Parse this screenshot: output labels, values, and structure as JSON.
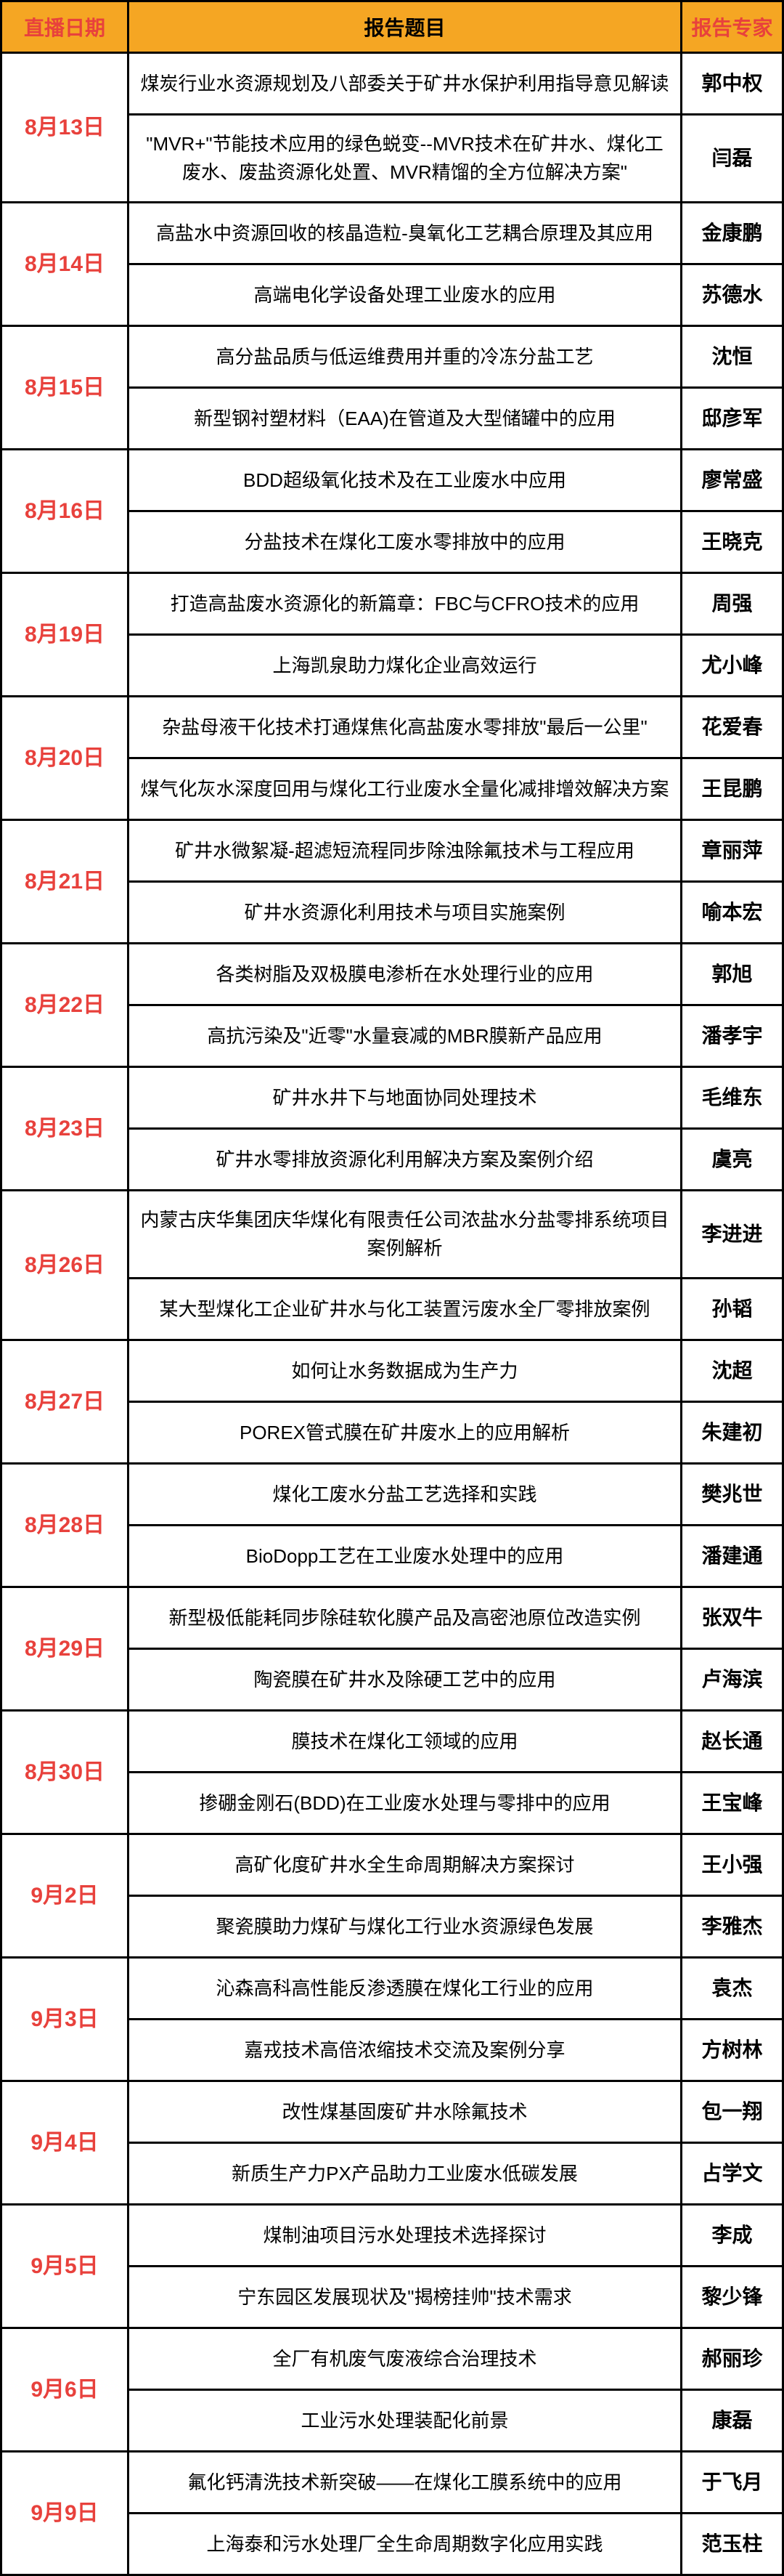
{
  "header": {
    "date_label": "直播日期",
    "title_label": "报告题目",
    "expert_label": "报告专家"
  },
  "colors": {
    "header_bg": "#f5a623",
    "date_text": "#e8413c",
    "border": "#000000"
  },
  "schedule": [
    {
      "date": "8月13日",
      "sessions": [
        {
          "title": "煤炭行业水资源规划及八部委关于矿井水保护利用指导意见解读",
          "expert": "郭中权"
        },
        {
          "title": "\"MVR+\"节能技术应用的绿色蜕变--MVR技术在矿井水、煤化工废水、废盐资源化处置、MVR精馏的全方位解决方案\"",
          "expert": "闫磊"
        }
      ]
    },
    {
      "date": "8月14日",
      "sessions": [
        {
          "title": "高盐水中资源回收的核晶造粒-臭氧化工艺耦合原理及其应用",
          "expert": "金康鹏"
        },
        {
          "title": "高端电化学设备处理工业废水的应用",
          "expert": "苏德水"
        }
      ]
    },
    {
      "date": "8月15日",
      "sessions": [
        {
          "title": "高分盐品质与低运维费用并重的冷冻分盐工艺",
          "expert": "沈恒"
        },
        {
          "title": "新型钢衬塑材料（EAA)在管道及大型储罐中的应用",
          "expert": "邸彦军"
        }
      ]
    },
    {
      "date": "8月16日",
      "sessions": [
        {
          "title": "BDD超级氧化技术及在工业废水中应用",
          "expert": "廖常盛"
        },
        {
          "title": "分盐技术在煤化工废水零排放中的应用",
          "expert": "王晓克"
        }
      ]
    },
    {
      "date": "8月19日",
      "sessions": [
        {
          "title": "打造高盐废水资源化的新篇章：FBC与CFRO技术的应用",
          "expert": "周强"
        },
        {
          "title": "上海凯泉助力煤化企业高效运行",
          "expert": "尤小峰"
        }
      ]
    },
    {
      "date": "8月20日",
      "sessions": [
        {
          "title": "杂盐母液干化技术打通煤焦化高盐废水零排放\"最后一公里\"",
          "expert": "花爱春"
        },
        {
          "title": "煤气化灰水深度回用与煤化工行业废水全量化减排增效解决方案",
          "expert": "王昆鹏"
        }
      ]
    },
    {
      "date": "8月21日",
      "sessions": [
        {
          "title": "矿井水微絮凝-超滤短流程同步除浊除氟技术与工程应用",
          "expert": "章丽萍"
        },
        {
          "title": "矿井水资源化利用技术与项目实施案例",
          "expert": "喻本宏"
        }
      ]
    },
    {
      "date": "8月22日",
      "sessions": [
        {
          "title": "各类树脂及双极膜电渗析在水处理行业的应用",
          "expert": "郭旭"
        },
        {
          "title": "高抗污染及\"近零\"水量衰减的MBR膜新产品应用",
          "expert": "潘孝宇"
        }
      ]
    },
    {
      "date": "8月23日",
      "sessions": [
        {
          "title": "矿井水井下与地面协同处理技术",
          "expert": "毛维东"
        },
        {
          "title": "矿井水零排放资源化利用解决方案及案例介绍",
          "expert": "虞亮"
        }
      ]
    },
    {
      "date": "8月26日",
      "sessions": [
        {
          "title": "内蒙古庆华集团庆华煤化有限责任公司浓盐水分盐零排系统项目案例解析",
          "expert": "李进进"
        },
        {
          "title": "某大型煤化工企业矿井水与化工装置污废水全厂零排放案例",
          "expert": "孙韬"
        }
      ]
    },
    {
      "date": "8月27日",
      "sessions": [
        {
          "title": "如何让水务数据成为生产力",
          "expert": "沈超"
        },
        {
          "title": "POREX管式膜在矿井废水上的应用解析",
          "expert": "朱建初"
        }
      ]
    },
    {
      "date": "8月28日",
      "sessions": [
        {
          "title": "煤化工废水分盐工艺选择和实践",
          "expert": "樊兆世"
        },
        {
          "title": "BioDopp工艺在工业废水处理中的应用",
          "expert": "潘建通"
        }
      ]
    },
    {
      "date": "8月29日",
      "sessions": [
        {
          "title": "新型极低能耗同步除硅软化膜产品及高密池原位改造实例",
          "expert": "张双牛"
        },
        {
          "title": "陶瓷膜在矿井水及除硬工艺中的应用",
          "expert": "卢海滨"
        }
      ]
    },
    {
      "date": "8月30日",
      "sessions": [
        {
          "title": "膜技术在煤化工领域的应用",
          "expert": "赵长通"
        },
        {
          "title": "掺硼金刚石(BDD)在工业废水处理与零排中的应用",
          "expert": "王宝峰"
        }
      ]
    },
    {
      "date": "9月2日",
      "sessions": [
        {
          "title": "高矿化度矿井水全生命周期解决方案探讨",
          "expert": "王小强"
        },
        {
          "title": "聚瓷膜助力煤矿与煤化工行业水资源绿色发展",
          "expert": "李雅杰"
        }
      ]
    },
    {
      "date": "9月3日",
      "sessions": [
        {
          "title": "沁森高科高性能反渗透膜在煤化工行业的应用",
          "expert": "袁杰"
        },
        {
          "title": "嘉戎技术高倍浓缩技术交流及案例分享",
          "expert": "方树林"
        }
      ]
    },
    {
      "date": "9月4日",
      "sessions": [
        {
          "title": "改性煤基固废矿井水除氟技术",
          "expert": "包一翔"
        },
        {
          "title": "新质生产力PX产品助力工业废水低碳发展",
          "expert": "占学文"
        }
      ]
    },
    {
      "date": "9月5日",
      "sessions": [
        {
          "title": "煤制油项目污水处理技术选择探讨",
          "expert": "李成"
        },
        {
          "title": "宁东园区发展现状及\"揭榜挂帅\"技术需求",
          "expert": "黎少锋"
        }
      ]
    },
    {
      "date": "9月6日",
      "sessions": [
        {
          "title": "全厂有机废气废液综合治理技术",
          "expert": "郝丽珍"
        },
        {
          "title": "工业污水处理装配化前景",
          "expert": "康磊"
        }
      ]
    },
    {
      "date": "9月9日",
      "sessions": [
        {
          "title": "氟化钙清洗技术新突破——在煤化工膜系统中的应用",
          "expert": "于飞月"
        },
        {
          "title": "上海泰和污水处理厂全生命周期数字化应用实践",
          "expert": "范玉柱"
        }
      ]
    }
  ]
}
